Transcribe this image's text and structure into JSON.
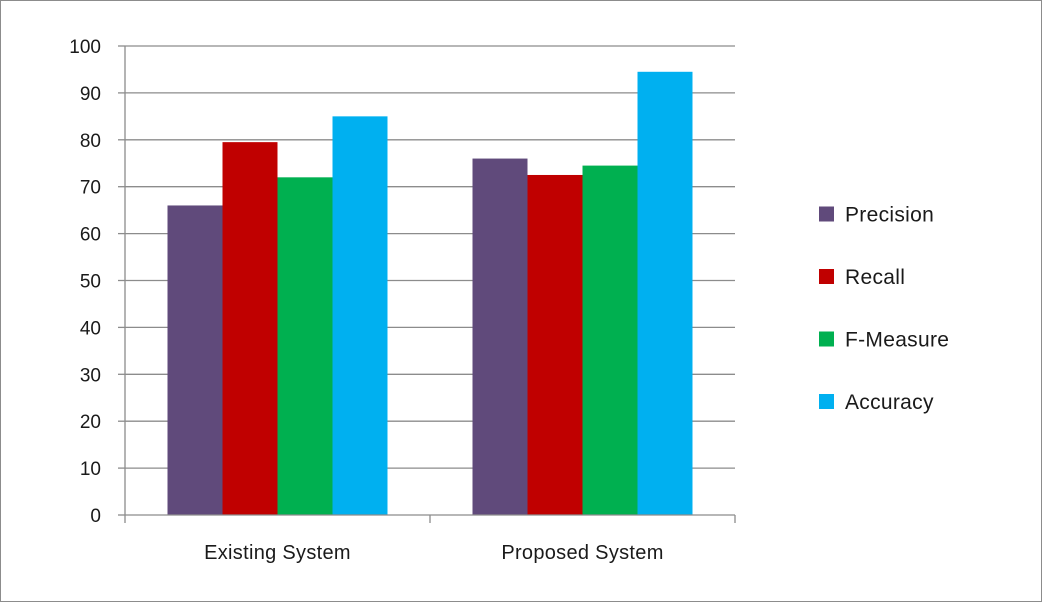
{
  "chart_data": {
    "type": "bar",
    "title": "",
    "xlabel": "",
    "ylabel": "",
    "categories": [
      "Existing System",
      "Proposed System"
    ],
    "series": [
      {
        "name": "Precision",
        "values": [
          66,
          76
        ],
        "color": "#604a7b"
      },
      {
        "name": "Recall",
        "values": [
          79.5,
          72.5
        ],
        "color": "#c00000"
      },
      {
        "name": "F-Measure",
        "values": [
          72,
          74.5
        ],
        "color": "#00b050"
      },
      {
        "name": "Accuracy",
        "values": [
          85,
          94.5
        ],
        "color": "#00b0f0"
      }
    ],
    "ylim": [
      0,
      100
    ],
    "yticks": [
      0,
      10,
      20,
      30,
      40,
      50,
      60,
      70,
      80,
      90,
      100
    ],
    "grid": true,
    "legend_position": "right"
  }
}
